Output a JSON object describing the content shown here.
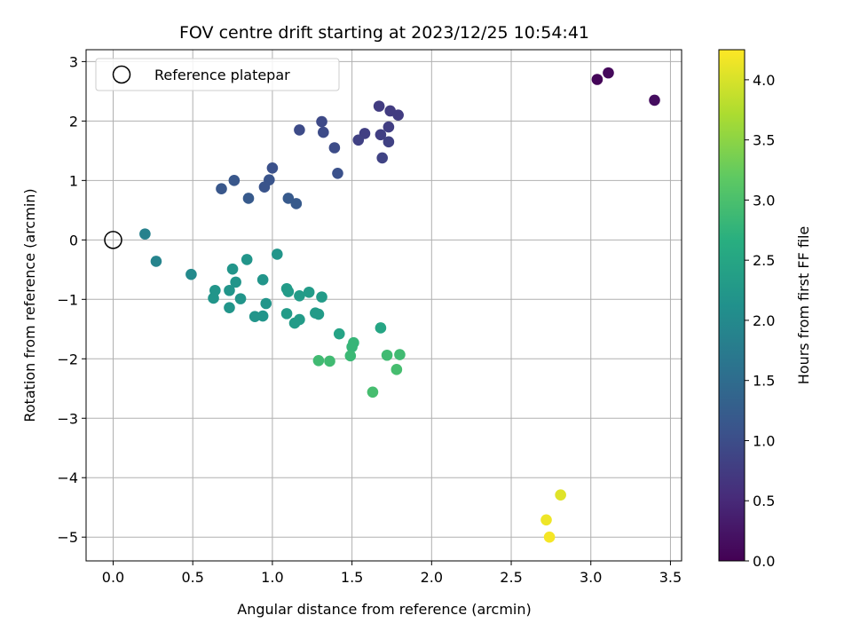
{
  "chart_data": {
    "type": "scatter",
    "title": "FOV centre drift starting at 2023/12/25 10:54:41",
    "xlabel": "Angular distance from reference (arcmin)",
    "ylabel": "Rotation from reference (arcmin)",
    "xlim": [
      -0.17,
      3.57
    ],
    "ylim": [
      -5.4,
      3.2
    ],
    "xticks": [
      0.0,
      0.5,
      1.0,
      1.5,
      2.0,
      2.5,
      3.0,
      3.5
    ],
    "xtick_labels": [
      "0.0",
      "0.5",
      "1.0",
      "1.5",
      "2.0",
      "2.5",
      "3.0",
      "3.5"
    ],
    "yticks": [
      -5,
      -4,
      -3,
      -2,
      -1,
      0,
      1,
      2,
      3
    ],
    "ytick_labels": [
      "−5",
      "−4",
      "−3",
      "−2",
      "−1",
      "0",
      "1",
      "2",
      "3"
    ],
    "grid": true,
    "legend": {
      "placement": "upper-left",
      "entries": [
        "Reference platepar"
      ]
    },
    "reference_point": {
      "x": 0.0,
      "y": 0.0
    },
    "colorbar": {
      "label": "Hours from first FF file",
      "colormap": "viridis",
      "range": [
        0.0,
        4.25
      ],
      "ticks": [
        0.0,
        0.5,
        1.0,
        1.5,
        2.0,
        2.5,
        3.0,
        3.5,
        4.0
      ],
      "tick_labels": [
        "0.0",
        "0.5",
        "1.0",
        "1.5",
        "2.0",
        "2.5",
        "3.0",
        "3.5",
        "4.0"
      ]
    },
    "points": [
      {
        "x": 3.04,
        "y": 2.7,
        "h": 0.05
      },
      {
        "x": 3.11,
        "y": 2.81,
        "h": 0.1
      },
      {
        "x": 3.4,
        "y": 2.35,
        "h": 0.15
      },
      {
        "x": 1.67,
        "y": 2.25,
        "h": 0.75
      },
      {
        "x": 1.74,
        "y": 2.17,
        "h": 0.75
      },
      {
        "x": 1.79,
        "y": 2.1,
        "h": 0.75
      },
      {
        "x": 1.73,
        "y": 1.9,
        "h": 0.78
      },
      {
        "x": 1.68,
        "y": 1.77,
        "h": 0.8
      },
      {
        "x": 1.58,
        "y": 1.79,
        "h": 0.8
      },
      {
        "x": 1.54,
        "y": 1.68,
        "h": 0.82
      },
      {
        "x": 1.73,
        "y": 1.65,
        "h": 0.82
      },
      {
        "x": 1.69,
        "y": 1.38,
        "h": 0.85
      },
      {
        "x": 1.31,
        "y": 1.99,
        "h": 0.95
      },
      {
        "x": 1.17,
        "y": 1.85,
        "h": 0.97
      },
      {
        "x": 1.32,
        "y": 1.81,
        "h": 0.97
      },
      {
        "x": 1.39,
        "y": 1.55,
        "h": 0.98
      },
      {
        "x": 1.41,
        "y": 1.12,
        "h": 1.05
      },
      {
        "x": 1.0,
        "y": 1.21,
        "h": 1.05
      },
      {
        "x": 0.98,
        "y": 1.01,
        "h": 1.1
      },
      {
        "x": 0.95,
        "y": 0.89,
        "h": 1.1
      },
      {
        "x": 0.76,
        "y": 1.0,
        "h": 1.15
      },
      {
        "x": 0.68,
        "y": 0.86,
        "h": 1.15
      },
      {
        "x": 0.85,
        "y": 0.7,
        "h": 1.2
      },
      {
        "x": 1.1,
        "y": 0.7,
        "h": 1.2
      },
      {
        "x": 1.15,
        "y": 0.61,
        "h": 1.2
      },
      {
        "x": 0.2,
        "y": 0.1,
        "h": 1.85
      },
      {
        "x": 0.27,
        "y": -0.36,
        "h": 1.9
      },
      {
        "x": 0.49,
        "y": -0.58,
        "h": 2.0
      },
      {
        "x": 1.03,
        "y": -0.24,
        "h": 2.2
      },
      {
        "x": 0.84,
        "y": -0.33,
        "h": 2.2
      },
      {
        "x": 0.75,
        "y": -0.49,
        "h": 2.2
      },
      {
        "x": 0.77,
        "y": -0.71,
        "h": 2.2
      },
      {
        "x": 0.64,
        "y": -0.85,
        "h": 2.2
      },
      {
        "x": 0.73,
        "y": -0.85,
        "h": 2.2
      },
      {
        "x": 0.63,
        "y": -0.98,
        "h": 2.2
      },
      {
        "x": 0.8,
        "y": -0.99,
        "h": 2.2
      },
      {
        "x": 0.73,
        "y": -1.14,
        "h": 2.2
      },
      {
        "x": 0.94,
        "y": -0.67,
        "h": 2.2
      },
      {
        "x": 0.96,
        "y": -1.07,
        "h": 2.2
      },
      {
        "x": 0.89,
        "y": -1.29,
        "h": 2.2
      },
      {
        "x": 0.94,
        "y": -1.28,
        "h": 2.2
      },
      {
        "x": 1.09,
        "y": -0.82,
        "h": 2.3
      },
      {
        "x": 1.1,
        "y": -0.87,
        "h": 2.3
      },
      {
        "x": 1.17,
        "y": -0.94,
        "h": 2.3
      },
      {
        "x": 1.23,
        "y": -0.88,
        "h": 2.3
      },
      {
        "x": 1.31,
        "y": -0.96,
        "h": 2.3
      },
      {
        "x": 1.09,
        "y": -1.24,
        "h": 2.3
      },
      {
        "x": 1.27,
        "y": -1.23,
        "h": 2.3
      },
      {
        "x": 1.29,
        "y": -1.25,
        "h": 2.3
      },
      {
        "x": 1.17,
        "y": -1.34,
        "h": 2.3
      },
      {
        "x": 1.14,
        "y": -1.4,
        "h": 2.3
      },
      {
        "x": 1.42,
        "y": -1.58,
        "h": 2.45
      },
      {
        "x": 1.68,
        "y": -1.48,
        "h": 2.5
      },
      {
        "x": 1.51,
        "y": -1.73,
        "h": 2.8
      },
      {
        "x": 1.5,
        "y": -1.8,
        "h": 2.8
      },
      {
        "x": 1.49,
        "y": -1.95,
        "h": 2.85
      },
      {
        "x": 1.29,
        "y": -2.03,
        "h": 2.9
      },
      {
        "x": 1.36,
        "y": -2.04,
        "h": 2.9
      },
      {
        "x": 1.72,
        "y": -1.94,
        "h": 2.9
      },
      {
        "x": 1.8,
        "y": -1.93,
        "h": 2.9
      },
      {
        "x": 1.78,
        "y": -2.18,
        "h": 2.95
      },
      {
        "x": 1.63,
        "y": -2.56,
        "h": 2.95
      },
      {
        "x": 2.81,
        "y": -4.29,
        "h": 4.05
      },
      {
        "x": 2.72,
        "y": -4.71,
        "h": 4.15
      },
      {
        "x": 2.74,
        "y": -5.0,
        "h": 4.2
      }
    ]
  }
}
